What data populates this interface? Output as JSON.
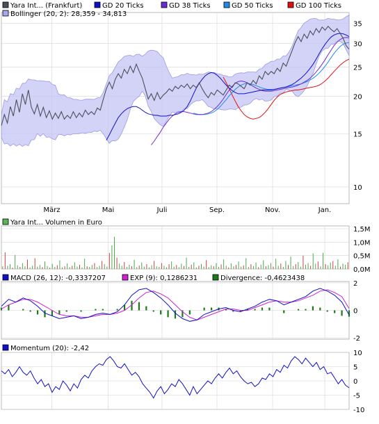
{
  "chart_data": [
    {
      "type": "line",
      "panel": "price",
      "scale": "log",
      "ylim": [
        8.8,
        38
      ],
      "yticks": [
        35,
        30,
        25,
        20,
        15,
        10
      ],
      "x_tick_labels": [
        "März",
        "Mai",
        "Juli",
        "Sep.",
        "Nov.",
        "Jan."
      ],
      "legend": [
        {
          "label": "Yara Int... (Frankfurt)",
          "color": "#4a4f5a"
        },
        {
          "label": "GD 20 Ticks",
          "color": "#1010c8"
        },
        {
          "label": "GD 38 Ticks",
          "color": "#6a2ad8"
        },
        {
          "label": "GD 50 Ticks",
          "color": "#1e8ce8"
        },
        {
          "label": "GD 100 Ticks",
          "color": "#e01010"
        },
        {
          "label": "Bollinger (20, 2): 28,359 - 34,813",
          "color": "#a8a8ee"
        }
      ],
      "series": [
        {
          "name": "Yara Int... (Frankfurt)",
          "color": "#4a4f5a",
          "values": [
            16.0,
            17.4,
            16.3,
            18.5,
            17.2,
            19.5,
            17.7,
            20.4,
            18.8,
            21.0,
            18.4,
            17.5,
            18.8,
            17.2,
            18.4,
            17.0,
            17.9,
            16.8,
            17.6,
            16.9,
            17.8,
            16.8,
            17.3,
            16.9,
            17.8,
            17.0,
            17.6,
            17.1,
            18.0,
            17.4,
            17.8,
            17.4,
            18.3,
            18.0,
            19.6,
            21.2,
            22.3,
            21.2,
            22.8,
            23.8,
            23.0,
            24.6,
            23.8,
            25.2,
            24.0,
            25.6,
            24.2,
            23.0,
            21.2,
            19.6,
            20.4,
            19.4,
            20.6,
            19.6,
            20.2,
            20.6,
            21.2,
            20.8,
            21.6,
            21.2,
            21.8,
            21.4,
            22.0,
            21.2,
            21.8,
            21.4,
            22.2,
            21.2,
            20.4,
            19.8,
            20.6,
            20.2,
            21.0,
            20.6,
            20.2,
            21.0,
            21.8,
            21.4,
            22.2,
            22.0,
            21.6,
            21.2,
            22.2,
            21.8,
            22.6,
            22.0,
            23.4,
            22.8,
            24.2,
            23.6,
            24.2,
            23.8,
            24.8,
            24.2,
            25.8,
            25.2,
            26.8,
            28.4,
            30.2,
            31.6,
            30.4,
            32.2,
            31.2,
            33.0,
            32.0,
            33.6,
            32.6,
            34.0,
            33.2,
            34.2,
            33.4,
            32.8,
            33.6,
            32.4,
            31.2,
            29.5,
            28.7
          ]
        },
        {
          "name": "GD 20 Ticks",
          "color": "#1010c8",
          "values": [
            14.3,
            14.9,
            15.6,
            16.3,
            17.0,
            17.5,
            17.9,
            18.2,
            18.4,
            18.5,
            18.5,
            18.3,
            18.0,
            17.7,
            17.5,
            17.4,
            17.3,
            17.3,
            17.2,
            17.2,
            17.2,
            17.3,
            17.3,
            17.4,
            17.5,
            17.7,
            18.0,
            18.5,
            19.3,
            20.3,
            21.3,
            22.1,
            22.8,
            23.4,
            23.8,
            24.0,
            23.9,
            23.5,
            23.0,
            22.4,
            21.8,
            21.3,
            20.9,
            20.6,
            20.4,
            20.4,
            20.4,
            20.5,
            20.6,
            20.7,
            20.8,
            20.9,
            21.0,
            21.0,
            21.0,
            21.0,
            21.1,
            21.2,
            21.3,
            21.4,
            21.5,
            21.7,
            21.9,
            22.2,
            22.6,
            23.0,
            23.5,
            24.1,
            24.8,
            25.6,
            26.6,
            27.7,
            28.8,
            29.8,
            30.7,
            31.5,
            32.0,
            32.3,
            32.4,
            32.3,
            32.0,
            31.6
          ]
        },
        {
          "name": "GD 38 Ticks",
          "color": "#6a2ad8",
          "values": [
            13.8,
            14.2,
            14.7,
            15.2,
            15.8,
            16.3,
            16.8,
            17.2,
            17.5,
            17.7,
            17.8,
            17.8,
            17.7,
            17.6,
            17.5,
            17.4,
            17.4,
            17.4,
            17.5,
            17.6,
            17.8,
            18.1,
            18.5,
            19.0,
            19.6,
            20.3,
            21.0,
            21.6,
            22.1,
            22.4,
            22.5,
            22.4,
            22.2,
            21.9,
            21.6,
            21.3,
            21.1,
            20.9,
            20.8,
            20.8,
            20.8,
            20.9,
            21.0,
            21.1,
            21.2,
            21.3,
            21.4,
            21.5,
            21.6,
            21.8,
            22.0,
            22.3,
            22.6,
            23.0,
            23.5,
            24.1,
            24.8,
            25.6,
            26.5,
            27.5,
            28.5,
            29.5,
            30.3,
            30.9,
            31.3,
            31.4,
            31.3
          ]
        },
        {
          "name": "GD 50 Ticks",
          "color": "#1e8ce8",
          "values": [
            17.6,
            17.5,
            17.4,
            17.4,
            17.4,
            17.5,
            17.6,
            17.8,
            18.1,
            18.5,
            19.0,
            19.5,
            20.1,
            20.6,
            21.1,
            21.5,
            21.8,
            22.0,
            22.1,
            22.0,
            21.9,
            21.7,
            21.5,
            21.3,
            21.2,
            21.1,
            21.1,
            21.1,
            21.2,
            21.3,
            21.4,
            21.5,
            21.6,
            21.7,
            21.8,
            21.9,
            22.0,
            22.2,
            22.4,
            22.7,
            23.0,
            23.4,
            23.9,
            24.5,
            25.2,
            26.0,
            26.9,
            27.8,
            28.6,
            29.3,
            29.8,
            30.1,
            30.2
          ]
        },
        {
          "name": "GD 100 Ticks",
          "color": "#e01010",
          "values": [
            23.2,
            22.2,
            21.2,
            20.2,
            19.3,
            18.5,
            17.9,
            17.4,
            17.1,
            16.9,
            16.8,
            16.9,
            17.0,
            17.3,
            17.7,
            18.2,
            18.8,
            19.4,
            19.9,
            20.3,
            20.5,
            20.7,
            20.8,
            20.9,
            21.0,
            21.0,
            21.1,
            21.2,
            21.3,
            21.4,
            21.5,
            21.6,
            21.8,
            22.1,
            22.5,
            23.0,
            23.6,
            24.2,
            24.8,
            25.4,
            25.9,
            26.3,
            26.6
          ]
        }
      ]
    },
    {
      "type": "bar",
      "panel": "volume",
      "legend": [
        {
          "label": "Yara Int... Volumen in Euro",
          "color": "#5ab45a"
        }
      ],
      "yticks": [
        "1,5M",
        "1,0M",
        "0,5M",
        "0,0M"
      ],
      "ylim": [
        0,
        1.5
      ],
      "unit": "M Euro",
      "values": [
        0.1,
        0.62,
        0.12,
        0.18,
        0.05,
        0.52,
        0.14,
        0.08,
        0.22,
        0.1,
        0.35,
        0.06,
        0.12,
        0.4,
        0.09,
        0.15,
        0.07,
        0.28,
        0.11,
        0.05,
        0.19,
        0.08,
        0.14,
        0.32,
        0.06,
        0.1,
        0.21,
        0.07,
        0.12,
        0.25,
        0.09,
        0.16,
        0.06,
        0.38,
        0.1,
        0.08,
        0.15,
        0.22,
        0.07,
        0.12,
        0.3,
        0.18,
        0.09,
        0.6,
        0.88,
        1.2,
        0.42,
        0.2,
        0.12,
        0.26,
        0.08,
        0.16,
        0.1,
        0.34,
        0.07,
        0.13,
        0.24,
        0.09,
        0.18,
        0.06,
        0.14,
        0.3,
        0.1,
        0.08,
        0.22,
        0.12,
        0.06,
        0.18,
        0.28,
        0.09,
        0.15,
        0.07,
        0.2,
        0.11,
        0.42,
        0.08,
        0.16,
        0.25,
        0.06,
        0.12,
        0.19,
        0.09,
        0.33,
        0.07,
        0.14,
        0.1,
        0.22,
        0.08,
        0.17,
        0.36,
        0.12,
        0.06,
        0.21,
        0.1,
        0.15,
        0.28,
        0.09,
        0.13,
        0.4,
        0.08,
        0.18,
        0.11,
        0.24,
        0.07,
        0.16,
        0.32,
        0.1,
        0.14,
        0.22,
        0.09,
        0.38,
        0.12,
        0.2,
        0.08,
        0.3,
        0.15,
        0.46,
        0.11,
        0.18,
        0.26,
        0.09,
        0.5,
        0.16,
        0.22,
        0.12,
        0.58,
        0.2,
        0.28,
        0.1,
        0.6,
        0.18,
        0.14,
        0.24,
        0.3,
        0.12,
        0.36,
        0.09,
        0.2,
        0.16,
        0.25
      ]
    },
    {
      "type": "line",
      "panel": "macd",
      "legend": [
        {
          "label": "MACD (26, 12): -0,3337207",
          "color": "#1010c8"
        },
        {
          "label": "EXP (9): 0,1286231",
          "color": "#d020d0"
        },
        {
          "label": "Divergence: -0,4623438",
          "color": "#1a7a1a"
        }
      ],
      "yticks": [
        2,
        0,
        -2
      ],
      "ylim": [
        -2.1,
        2.1
      ],
      "series": [
        {
          "name": "MACD (26, 12)",
          "color": "#1010c8",
          "values": [
            0.3,
            0.8,
            0.6,
            0.9,
            0.7,
            0.3,
            -0.2,
            -0.4,
            -0.6,
            -0.5,
            -0.4,
            -0.6,
            -0.5,
            -0.3,
            -0.2,
            -0.3,
            -0.1,
            0.4,
            1.1,
            1.5,
            1.6,
            1.3,
            0.9,
            0.4,
            -0.2,
            -0.6,
            -0.8,
            -0.7,
            -0.3,
            -0.1,
            0.1,
            0.2,
            0.0,
            -0.1,
            0.1,
            0.3,
            0.6,
            0.8,
            0.7,
            0.4,
            0.6,
            0.8,
            1.0,
            1.4,
            1.6,
            1.4,
            1.1,
            0.6,
            -0.33
          ]
        },
        {
          "name": "EXP (9)",
          "color": "#d020d0",
          "values": [
            0.1,
            0.4,
            0.6,
            0.8,
            0.8,
            0.6,
            0.3,
            0.0,
            -0.3,
            -0.4,
            -0.4,
            -0.5,
            -0.5,
            -0.4,
            -0.3,
            -0.3,
            -0.2,
            0.0,
            0.4,
            0.9,
            1.3,
            1.4,
            1.2,
            0.9,
            0.4,
            -0.1,
            -0.5,
            -0.7,
            -0.5,
            -0.3,
            -0.1,
            0.1,
            0.1,
            0.0,
            0.0,
            0.2,
            0.4,
            0.6,
            0.7,
            0.6,
            0.6,
            0.7,
            0.9,
            1.1,
            1.4,
            1.5,
            1.3,
            1.0,
            0.13
          ]
        }
      ],
      "histogram": {
        "name": "Divergence",
        "color": "#1a7a1a",
        "values": [
          0.2,
          0.4,
          0.0,
          0.1,
          -0.1,
          -0.3,
          -0.5,
          -0.4,
          -0.3,
          -0.1,
          0.0,
          -0.1,
          0.0,
          0.1,
          0.1,
          0.0,
          0.1,
          0.4,
          0.7,
          0.6,
          0.3,
          -0.1,
          -0.3,
          -0.5,
          -0.6,
          -0.5,
          -0.3,
          0.0,
          0.2,
          0.2,
          0.2,
          0.1,
          -0.1,
          -0.1,
          0.1,
          0.1,
          0.2,
          0.2,
          0.0,
          -0.2,
          0.0,
          0.1,
          0.1,
          0.3,
          0.2,
          -0.1,
          -0.2,
          -0.4,
          -0.46
        ]
      }
    },
    {
      "type": "line",
      "panel": "momentum",
      "legend": [
        {
          "label": "Momentum (20): -2,42",
          "color": "#1010c8"
        }
      ],
      "yticks": [
        10,
        5,
        0,
        -5,
        -10
      ],
      "ylim": [
        -10,
        10
      ],
      "series": [
        {
          "name": "Momentum (20)",
          "color": "#1010c8",
          "values": [
            3.5,
            2.5,
            4.0,
            1.5,
            3.0,
            5.0,
            3.0,
            2.0,
            3.5,
            1.0,
            -1.0,
            0.5,
            -2.0,
            -1.0,
            -4.0,
            -2.0,
            -3.0,
            0.0,
            -1.5,
            -3.5,
            -1.0,
            -2.5,
            0.5,
            2.0,
            1.0,
            3.5,
            5.0,
            6.0,
            5.5,
            7.5,
            8.5,
            7.0,
            5.0,
            4.5,
            6.0,
            4.0,
            2.0,
            3.0,
            1.5,
            -1.0,
            -2.5,
            -4.0,
            -6.0,
            -3.5,
            -2.0,
            -4.5,
            -3.0,
            -1.0,
            -2.0,
            0.5,
            -1.0,
            -3.0,
            -5.0,
            -2.0,
            -4.5,
            -3.0,
            -1.5,
            0.0,
            -1.0,
            1.0,
            2.5,
            1.0,
            3.0,
            4.5,
            2.5,
            3.5,
            1.5,
            0.0,
            -1.0,
            -0.5,
            -2.0,
            -1.0,
            1.0,
            0.5,
            2.5,
            1.5,
            4.0,
            3.0,
            5.5,
            4.5,
            7.0,
            8.5,
            7.5,
            6.0,
            8.0,
            6.5,
            5.0,
            6.5,
            4.0,
            5.0,
            2.5,
            3.0,
            1.0,
            -1.0,
            0.5,
            -1.5,
            -2.42
          ]
        }
      ]
    }
  ]
}
